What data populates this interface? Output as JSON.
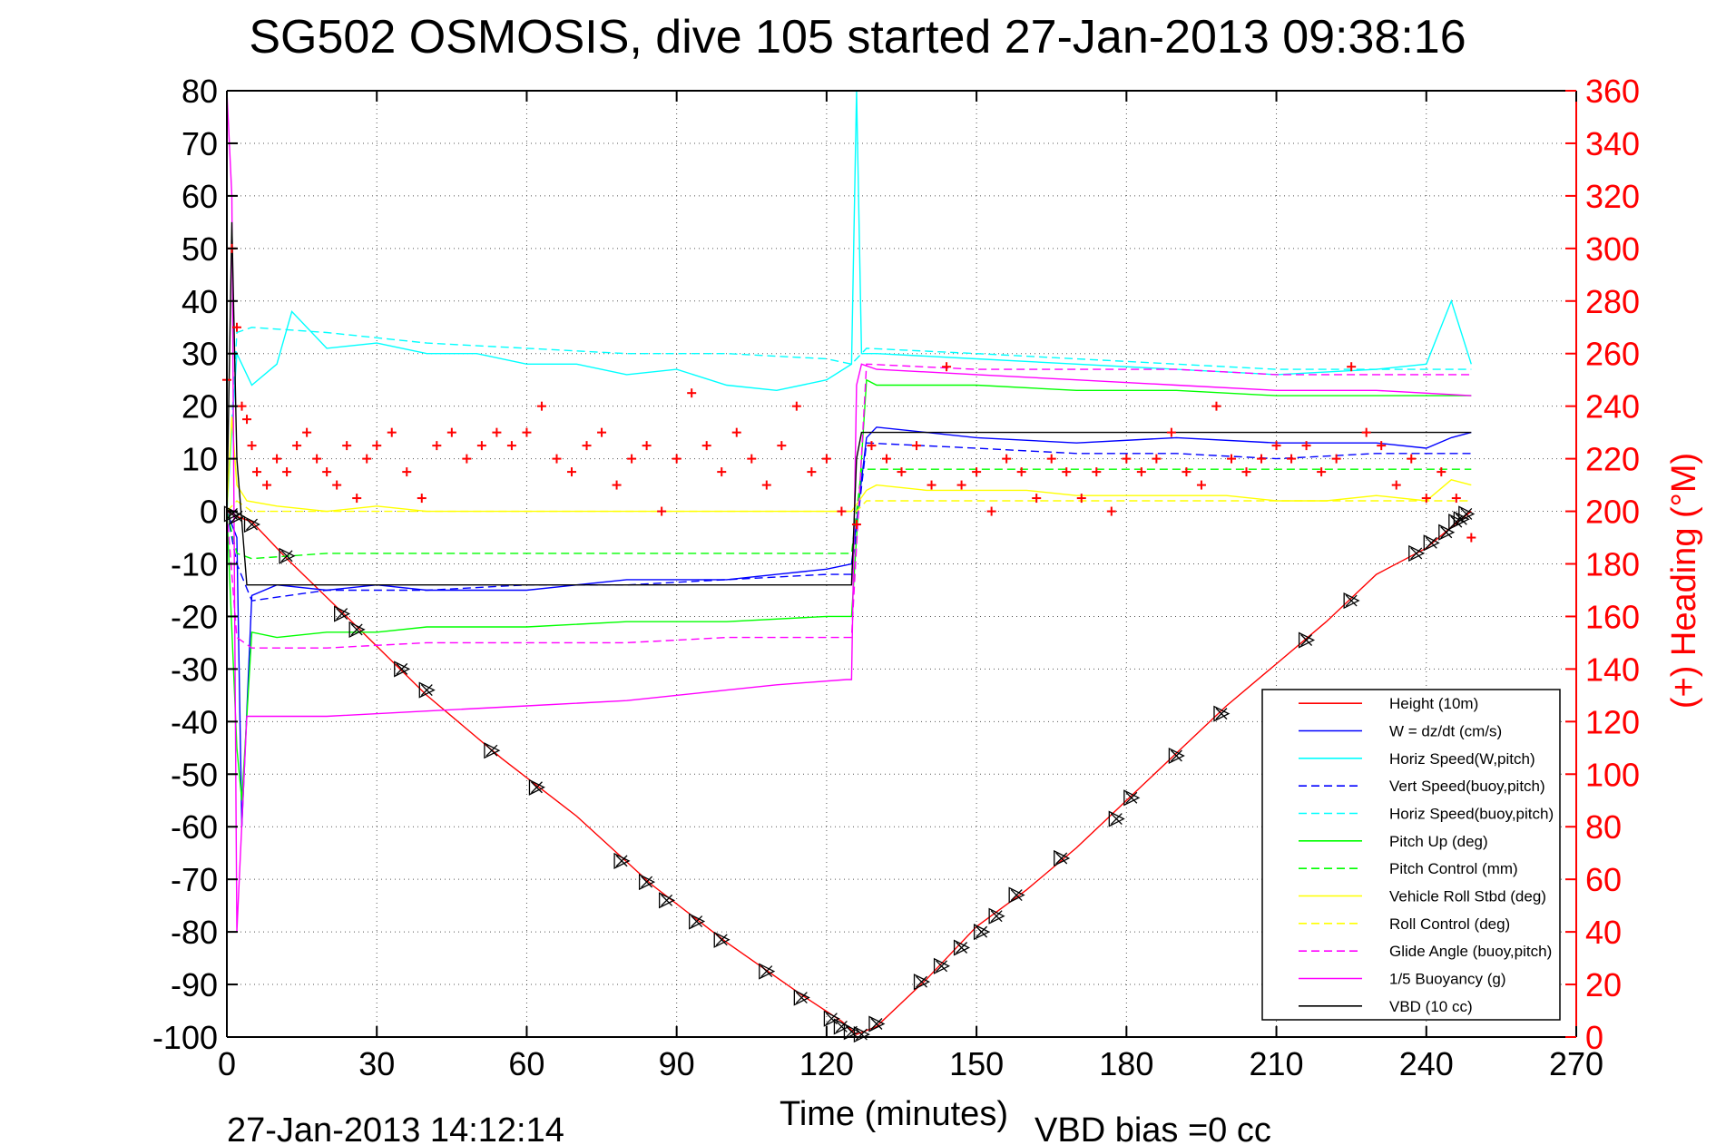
{
  "chart_data": {
    "type": "line",
    "title": "SG502 OSMOSIS, dive 105 started 27-Jan-2013 09:38:16",
    "xlabel": "Time (minutes)",
    "ylabel_right": "(+) Heading (°M)",
    "timestamp": "27-Jan-2013 14:12:14",
    "note": "VBD bias =0 cc",
    "xlim": [
      0,
      270
    ],
    "ylim": [
      -100,
      80
    ],
    "ylim_right": [
      0,
      360
    ],
    "grid": true,
    "legend_position": "lower-right",
    "x_ticks": [
      "0",
      "30",
      "60",
      "90",
      "120",
      "150",
      "180",
      "210",
      "240",
      "270"
    ],
    "y_ticks": [
      "80",
      "70",
      "60",
      "50",
      "40",
      "30",
      "20",
      "10",
      "0",
      "-10",
      "-20",
      "-30",
      "-40",
      "-50",
      "-60",
      "-70",
      "-80",
      "-90",
      "-100"
    ],
    "y_ticks_right": [
      "360",
      "340",
      "320",
      "300",
      "280",
      "260",
      "240",
      "220",
      "200",
      "180",
      "160",
      "140",
      "120",
      "100",
      "80",
      "60",
      "40",
      "20",
      "0"
    ],
    "series": [
      {
        "name": "Height (10m)",
        "color": "#ff0000",
        "style": "solid",
        "x": [
          0,
          2,
          5,
          12,
          25,
          40,
          55,
          70,
          85,
          100,
          115,
          123,
          126,
          130,
          140,
          150,
          160,
          170,
          180,
          190,
          200,
          210,
          220,
          230,
          240,
          245,
          249
        ],
        "y": [
          0,
          -1,
          -2,
          -9,
          -21,
          -35,
          -47,
          -58,
          -71,
          -82,
          -92,
          -97,
          -99.5,
          -98,
          -89,
          -79,
          -72,
          -64,
          -55,
          -46,
          -37,
          -29,
          -21,
          -12,
          -7,
          -3,
          0
        ]
      },
      {
        "name": "W = dz/dt (cm/s)",
        "color": "#0000ff",
        "style": "solid",
        "x": [
          0,
          2,
          3,
          5,
          10,
          20,
          30,
          40,
          60,
          80,
          100,
          110,
          120,
          125,
          128,
          130,
          150,
          170,
          190,
          210,
          230,
          240,
          245,
          249
        ],
        "y": [
          0,
          -5,
          -60,
          -16,
          -14,
          -15,
          -14,
          -15,
          -15,
          -13,
          -13,
          -12,
          -11,
          -10,
          14,
          16,
          14,
          13,
          14,
          13,
          13,
          12,
          14,
          15
        ]
      },
      {
        "name": "Horiz Speed(W,pitch)",
        "color": "#00ffff",
        "style": "solid",
        "x": [
          0,
          2,
          5,
          10,
          13,
          20,
          30,
          40,
          50,
          60,
          70,
          80,
          90,
          100,
          110,
          120,
          125,
          126,
          127,
          130,
          150,
          170,
          190,
          210,
          230,
          240,
          245,
          249
        ],
        "y": [
          0,
          30,
          24,
          28,
          38,
          31,
          32,
          30,
          30,
          28,
          28,
          26,
          27,
          24,
          23,
          25,
          28,
          80,
          30,
          30,
          29,
          28,
          27,
          26,
          27,
          28,
          40,
          28
        ]
      },
      {
        "name": "Vert Speed(buoy,pitch)",
        "color": "#0000ff",
        "style": "dashed",
        "x": [
          0,
          2,
          5,
          20,
          40,
          60,
          80,
          100,
          120,
          125,
          128,
          150,
          170,
          190,
          210,
          230,
          249
        ],
        "y": [
          0,
          -10,
          -17,
          -15,
          -15,
          -14,
          -14,
          -13,
          -12,
          -12,
          13,
          12,
          11,
          11,
          10,
          11,
          11
        ]
      },
      {
        "name": "Horiz Speed(buoy,pitch)",
        "color": "#00ffff",
        "style": "dashed",
        "x": [
          0,
          2,
          5,
          20,
          40,
          60,
          80,
          100,
          120,
          125,
          128,
          150,
          170,
          190,
          210,
          230,
          249
        ],
        "y": [
          0,
          34,
          35,
          34,
          32,
          31,
          30,
          30,
          29,
          28,
          31,
          30,
          29,
          28,
          27,
          27,
          27
        ]
      },
      {
        "name": "Pitch Up (deg)",
        "color": "#00ff00",
        "style": "solid",
        "x": [
          0,
          2,
          3,
          5,
          10,
          20,
          30,
          40,
          60,
          80,
          100,
          120,
          125,
          128,
          130,
          150,
          170,
          190,
          210,
          230,
          249
        ],
        "y": [
          0,
          -45,
          -55,
          -23,
          -24,
          -23,
          -23,
          -22,
          -22,
          -21,
          -21,
          -20,
          -20,
          25,
          24,
          24,
          23,
          23,
          22,
          22,
          22
        ]
      },
      {
        "name": "Pitch Control (mm)",
        "color": "#00ff00",
        "style": "dashed",
        "x": [
          0,
          2,
          5,
          20,
          40,
          60,
          80,
          100,
          125,
          127,
          128,
          150,
          170,
          190,
          210,
          230,
          249
        ],
        "y": [
          0,
          -8,
          -9,
          -8,
          -8,
          -8,
          -8,
          -8,
          -8,
          8,
          8,
          8,
          8,
          8,
          8,
          8,
          8
        ]
      },
      {
        "name": "Vehicle Roll Stbd (deg)",
        "color": "#ffff00",
        "style": "solid",
        "x": [
          0,
          1,
          2,
          4,
          10,
          20,
          30,
          40,
          50,
          60,
          70,
          80,
          90,
          100,
          110,
          120,
          125,
          128,
          130,
          140,
          150,
          160,
          170,
          180,
          190,
          200,
          210,
          220,
          230,
          240,
          245,
          249
        ],
        "y": [
          0,
          18,
          5,
          2,
          1,
          0,
          1,
          0,
          0,
          0,
          0,
          0,
          0,
          0,
          0,
          0,
          0,
          4,
          5,
          4,
          4,
          4,
          3,
          3,
          3,
          3,
          2,
          2,
          3,
          2,
          6,
          5
        ]
      },
      {
        "name": "Roll Control (deg)",
        "color": "#ffff00",
        "style": "dashed",
        "x": [
          0,
          2,
          5,
          20,
          40,
          60,
          80,
          100,
          120,
          126,
          128,
          150,
          170,
          190,
          210,
          230,
          249
        ],
        "y": [
          0,
          2,
          0,
          0,
          0,
          0,
          0,
          0,
          0,
          0,
          2,
          2,
          2,
          2,
          2,
          2,
          2
        ]
      },
      {
        "name": "Glide Angle (buoy,pitch)",
        "color": "#ff00ff",
        "style": "dashed",
        "x": [
          0,
          2,
          5,
          20,
          40,
          60,
          80,
          100,
          120,
          125,
          128,
          150,
          170,
          190,
          210,
          230,
          249
        ],
        "y": [
          0,
          -24,
          -26,
          -26,
          -25,
          -25,
          -25,
          -24,
          -24,
          -24,
          28,
          27,
          27,
          27,
          26,
          26,
          26
        ]
      },
      {
        "name": "1/5 Buoyancy (g)",
        "color": "#ff00ff",
        "style": "solid",
        "x": [
          0,
          1,
          2,
          4,
          20,
          40,
          60,
          80,
          100,
          110,
          124,
          125,
          126,
          127,
          130,
          150,
          170,
          190,
          210,
          225,
          230,
          249
        ],
        "y": [
          80,
          60,
          -80,
          -39,
          -39,
          -38,
          -37,
          -36,
          -34,
          -33,
          -32,
          -32,
          24,
          28,
          27,
          26,
          25,
          24,
          23,
          23,
          23,
          22
        ]
      },
      {
        "name": "VBD (10 cc)",
        "color": "#000000",
        "style": "solid",
        "x": [
          0,
          1,
          2,
          4,
          20,
          60,
          100,
          124,
          125,
          126,
          127,
          128,
          150,
          200,
          240,
          249
        ],
        "y": [
          0,
          55,
          10,
          -14,
          -14,
          -14,
          -14,
          -14,
          -14,
          10,
          15,
          15,
          15,
          15,
          15,
          15
        ]
      }
    ],
    "heading_series": {
      "name": "Heading",
      "axis": "right",
      "color": "#ff0000",
      "marker": "+",
      "x": [
        0,
        1,
        2,
        3,
        4,
        5,
        6,
        8,
        10,
        12,
        14,
        16,
        18,
        20,
        22,
        24,
        26,
        28,
        30,
        33,
        36,
        39,
        42,
        45,
        48,
        51,
        54,
        57,
        60,
        63,
        66,
        69,
        72,
        75,
        78,
        81,
        84,
        87,
        90,
        93,
        96,
        99,
        102,
        105,
        108,
        111,
        114,
        117,
        120,
        123,
        126,
        129,
        132,
        135,
        138,
        141,
        144,
        147,
        150,
        153,
        156,
        159,
        162,
        165,
        168,
        171,
        174,
        177,
        180,
        183,
        186,
        189,
        192,
        195,
        198,
        201,
        204,
        207,
        210,
        213,
        216,
        219,
        222,
        225,
        228,
        231,
        234,
        237,
        240,
        243,
        246,
        249
      ],
      "y": [
        250,
        300,
        270,
        240,
        235,
        225,
        215,
        210,
        220,
        215,
        225,
        230,
        220,
        215,
        210,
        225,
        205,
        220,
        225,
        230,
        215,
        205,
        225,
        230,
        220,
        225,
        230,
        225,
        230,
        240,
        220,
        215,
        225,
        230,
        210,
        220,
        225,
        200,
        220,
        245,
        225,
        215,
        230,
        220,
        210,
        225,
        240,
        215,
        220,
        200,
        195,
        225,
        220,
        215,
        225,
        210,
        255,
        210,
        215,
        200,
        220,
        215,
        205,
        220,
        215,
        205,
        215,
        200,
        220,
        215,
        220,
        230,
        215,
        210,
        240,
        220,
        215,
        220,
        225,
        220,
        225,
        215,
        220,
        255,
        230,
        225,
        210,
        220,
        205,
        215,
        205,
        190
      ]
    },
    "vbd_markers": {
      "name": "Height samples",
      "marker": "x-triangle",
      "color": "#000000",
      "x": [
        1,
        2,
        5,
        12,
        23,
        26,
        35,
        40,
        53,
        62,
        79,
        84,
        88,
        94,
        99,
        108,
        115,
        121,
        123,
        125,
        127,
        130,
        139,
        143,
        147,
        151,
        154,
        158,
        167,
        178,
        181,
        190,
        199,
        216,
        225,
        238,
        241,
        244,
        246,
        247,
        248
      ],
      "y": [
        -0.5,
        -1,
        -2.5,
        -8.5,
        -19.5,
        -22.5,
        -30,
        -34,
        -45.5,
        -52.5,
        -66.5,
        -70.5,
        -74,
        -78,
        -81.5,
        -87.5,
        -92.5,
        -96.5,
        -98,
        -99,
        -99.5,
        -97.5,
        -89.5,
        -86.5,
        -83,
        -80,
        -77,
        -73,
        -66,
        -58.5,
        -54.5,
        -46.5,
        -38.5,
        -24.5,
        -17,
        -8,
        -6,
        -4,
        -2,
        -1.5,
        -0.5
      ]
    }
  }
}
